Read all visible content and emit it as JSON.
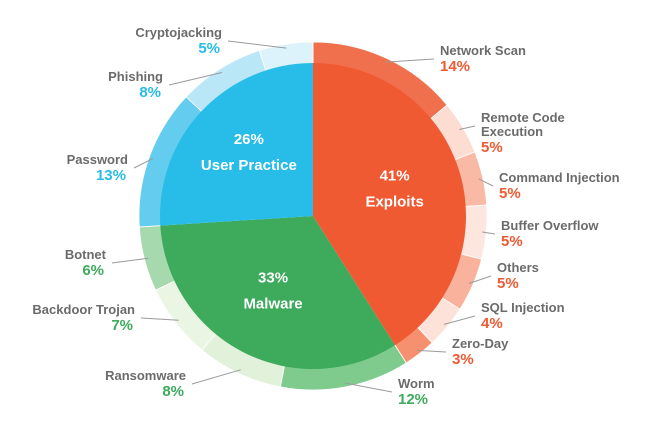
{
  "chart_data": {
    "type": "pie",
    "title": "",
    "main": [
      {
        "label": "Exploits",
        "value": 41,
        "display": "41%",
        "color": "#EF5A33"
      },
      {
        "label": "Malware",
        "value": 33,
        "display": "33%",
        "color": "#3DAA5C"
      },
      {
        "label": "User Practice",
        "value": 26,
        "display": "26%",
        "color": "#28BCE8"
      }
    ],
    "sub": [
      {
        "label": "Network Scan",
        "value": 14,
        "display": "14%",
        "group": "Exploits",
        "color": "#F0704D"
      },
      {
        "label": "Remote Code Execution",
        "label_lines": [
          "Remote Code",
          "Execution"
        ],
        "value": 5,
        "display": "5%",
        "group": "Exploits",
        "color": "#FDDCD2"
      },
      {
        "label": "Command Injection",
        "value": 5,
        "display": "5%",
        "group": "Exploits",
        "color": "#F9B9A4"
      },
      {
        "label": "Buffer Overflow",
        "value": 5,
        "display": "5%",
        "group": "Exploits",
        "color": "#FDE6DE"
      },
      {
        "label": "Others",
        "value": 5,
        "display": "5%",
        "group": "Exploits",
        "color": "#F9B29C"
      },
      {
        "label": "SQL Injection",
        "value": 4,
        "display": "4%",
        "group": "Exploits",
        "color": "#FDE2D9"
      },
      {
        "label": "Zero-Day",
        "value": 3,
        "display": "3%",
        "group": "Exploits",
        "color": "#F6906F"
      },
      {
        "label": "Worm",
        "value": 12,
        "display": "12%",
        "group": "Malware",
        "color": "#7FCB8E"
      },
      {
        "label": "Ransomware",
        "value": 8,
        "display": "8%",
        "group": "Malware",
        "color": "#E2F1DA"
      },
      {
        "label": "Backdoor Trojan",
        "value": 7,
        "display": "7%",
        "group": "Malware",
        "color": "#EAF5E4"
      },
      {
        "label": "Botnet",
        "value": 6,
        "display": "6%",
        "group": "Malware",
        "color": "#A7D9AE"
      },
      {
        "label": "Password",
        "value": 13,
        "display": "13%",
        "group": "User Practice",
        "color": "#64CCEE"
      },
      {
        "label": "Phishing",
        "value": 8,
        "display": "8%",
        "group": "User Practice",
        "color": "#B9E7F7"
      },
      {
        "label": "Cryptojacking",
        "value": 5,
        "display": "5%",
        "group": "User Practice",
        "color": "#DDF3FB"
      }
    ],
    "colors": {
      "exploits_text": "#EF5A33",
      "malware_text": "#3DAA5C",
      "user_text": "#28BCE8",
      "label_gray": "#6B6B6B",
      "leader": "#9A9A9A"
    }
  }
}
